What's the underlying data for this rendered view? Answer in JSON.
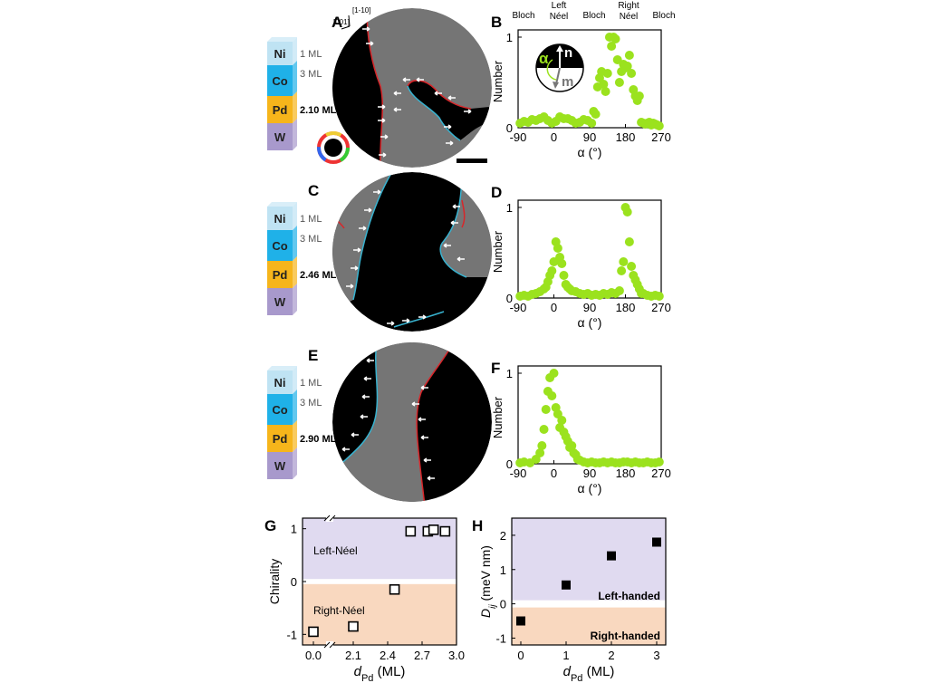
{
  "colors": {
    "point": "#9be21e",
    "red_wall": "#d8262a",
    "cyan_wall": "#38b3d0",
    "grey_domain": "#757575",
    "ni": "#bfe3f3",
    "co": "#1fb1e8",
    "pd": "#f6b51b",
    "w": "#a899cc",
    "lavender_band": "#ddd6ee",
    "peach_band": "#f8d4b8"
  },
  "stacks": [
    {
      "panel": "A",
      "pd_label": "2.10 ML"
    },
    {
      "panel": "C",
      "pd_label": "2.46 ML"
    },
    {
      "panel": "E",
      "pd_label": "2.90 ML"
    }
  ],
  "stack_common": {
    "ni": "Ni",
    "co": "Co",
    "pd": "Pd",
    "w": "W",
    "ni_thickness": "1 ML",
    "co_thickness": "3 ML"
  },
  "crystal_axes": {
    "a": "[1-10]",
    "b": "[001]"
  },
  "panel_letters": [
    "A",
    "B",
    "C",
    "D",
    "E",
    "F",
    "G",
    "H"
  ],
  "histogram_header": [
    "Bloch",
    "Left\nNéel",
    "Bloch",
    "Right\nNéel",
    "Bloch"
  ],
  "inset": {
    "alpha": "α",
    "n": "n",
    "m": "m"
  },
  "chart_data": [
    {
      "panel": "B",
      "type": "scatter",
      "xlabel": "α (°)",
      "ylabel": "Number",
      "xlim": [
        -90,
        270
      ],
      "ylim": [
        0,
        1
      ],
      "xticks": [
        -90,
        0,
        90,
        180,
        270
      ],
      "yticks": [
        0,
        1
      ],
      "x": [
        -85,
        -75,
        -65,
        -55,
        -45,
        -35,
        -25,
        -15,
        -5,
        5,
        15,
        25,
        35,
        45,
        55,
        65,
        75,
        85,
        95,
        100,
        105,
        110,
        115,
        120,
        125,
        130,
        135,
        140,
        145,
        150,
        155,
        160,
        165,
        170,
        175,
        180,
        185,
        190,
        195,
        200,
        205,
        210,
        215,
        220,
        225,
        230,
        235,
        240,
        245,
        250,
        255,
        260,
        265
      ],
      "y": [
        0.05,
        0.07,
        0.06,
        0.09,
        0.08,
        0.1,
        0.12,
        0.08,
        0.05,
        0.07,
        0.12,
        0.1,
        0.1,
        0.08,
        0.05,
        0.06,
        0.09,
        0.08,
        0.05,
        0.18,
        0.15,
        0.45,
        0.55,
        0.62,
        0.48,
        0.4,
        0.6,
        1.0,
        0.9,
        1.0,
        0.98,
        0.75,
        0.5,
        0.62,
        0.7,
        0.66,
        0.68,
        0.8,
        0.6,
        0.42,
        0.35,
        0.3,
        0.35,
        0.06,
        0.05,
        0.04,
        0.05,
        0.06,
        0.03,
        0.05,
        0.04,
        0.03,
        0.02
      ]
    },
    {
      "panel": "D",
      "type": "scatter",
      "xlabel": "α (°)",
      "ylabel": "Number",
      "xlim": [
        -90,
        270
      ],
      "ylim": [
        0,
        1
      ],
      "xticks": [
        -90,
        0,
        90,
        180,
        270
      ],
      "yticks": [
        0,
        1
      ],
      "x": [
        -85,
        -75,
        -65,
        -55,
        -45,
        -35,
        -25,
        -20,
        -15,
        -10,
        -5,
        0,
        5,
        10,
        15,
        20,
        25,
        30,
        35,
        40,
        45,
        55,
        65,
        75,
        85,
        95,
        105,
        115,
        125,
        135,
        145,
        155,
        165,
        170,
        175,
        180,
        185,
        190,
        195,
        200,
        205,
        210,
        215,
        220,
        225,
        235,
        245,
        255,
        265
      ],
      "y": [
        0.02,
        0.03,
        0.02,
        0.04,
        0.05,
        0.07,
        0.1,
        0.12,
        0.18,
        0.25,
        0.3,
        0.4,
        0.62,
        0.55,
        0.45,
        0.38,
        0.25,
        0.15,
        0.12,
        0.1,
        0.08,
        0.07,
        0.05,
        0.04,
        0.05,
        0.03,
        0.04,
        0.03,
        0.05,
        0.04,
        0.06,
        0.05,
        0.08,
        0.3,
        0.4,
        1.0,
        0.95,
        0.62,
        0.35,
        0.25,
        0.2,
        0.15,
        0.1,
        0.05,
        0.05,
        0.03,
        0.02,
        0.03,
        0.02
      ]
    },
    {
      "panel": "F",
      "type": "scatter",
      "xlabel": "α (°)",
      "ylabel": "Number",
      "xlim": [
        -90,
        270
      ],
      "ylim": [
        0,
        1
      ],
      "xticks": [
        -90,
        0,
        90,
        180,
        270
      ],
      "yticks": [
        0,
        1
      ],
      "x": [
        -85,
        -75,
        -60,
        -45,
        -35,
        -30,
        -25,
        -20,
        -15,
        -10,
        -5,
        0,
        5,
        10,
        15,
        20,
        25,
        30,
        35,
        40,
        45,
        50,
        55,
        60,
        65,
        75,
        85,
        95,
        105,
        115,
        125,
        135,
        145,
        155,
        165,
        175,
        185,
        195,
        205,
        215,
        225,
        235,
        245,
        255,
        265
      ],
      "y": [
        0.01,
        0.02,
        0.01,
        0.05,
        0.12,
        0.2,
        0.38,
        0.6,
        0.8,
        0.95,
        0.75,
        1.0,
        0.62,
        0.55,
        0.4,
        0.48,
        0.35,
        0.3,
        0.25,
        0.18,
        0.2,
        0.12,
        0.1,
        0.05,
        0.04,
        0.02,
        0.01,
        0.02,
        0.01,
        0.01,
        0.02,
        0.01,
        0.02,
        0.01,
        0.01,
        0.02,
        0.02,
        0.01,
        0.02,
        0.01,
        0.01,
        0.02,
        0.01,
        0.01,
        0.02
      ]
    },
    {
      "panel": "G",
      "type": "scatter",
      "xlabel_main": "d",
      "xlabel_sub": "Pd",
      "xlabel_unit": " (ML)",
      "ylabel": "Chirality",
      "xticks": [
        "0.0",
        "2.1",
        "2.4",
        "2.7",
        "3.0"
      ],
      "yticks": [
        "-1",
        "0",
        "1"
      ],
      "ylim": [
        -1.2,
        1.2
      ],
      "x": [
        0.0,
        2.1,
        2.46,
        2.6,
        2.75,
        2.8,
        2.9
      ],
      "y": [
        -0.95,
        -0.85,
        -0.15,
        0.95,
        0.95,
        0.98,
        0.95
      ],
      "bands": [
        "Left-Néel",
        "Right-Néel"
      ]
    },
    {
      "panel": "H",
      "type": "scatter",
      "xlabel_main": "d",
      "xlabel_sub": "Pd",
      "xlabel_unit": " (ML)",
      "ylabel_main": "D",
      "ylabel_sub": "ij",
      "ylabel_unit": " (meV nm)",
      "xlim": [
        -0.2,
        3.2
      ],
      "ylim": [
        -1.2,
        2.5
      ],
      "xticks": [
        0,
        1,
        2,
        3
      ],
      "yticks": [
        -1,
        0,
        1,
        2
      ],
      "x": [
        0,
        1,
        2,
        3
      ],
      "y": [
        -0.5,
        0.55,
        1.4,
        1.8
      ],
      "bands": [
        "Left-handed",
        "Right-handed"
      ]
    }
  ]
}
